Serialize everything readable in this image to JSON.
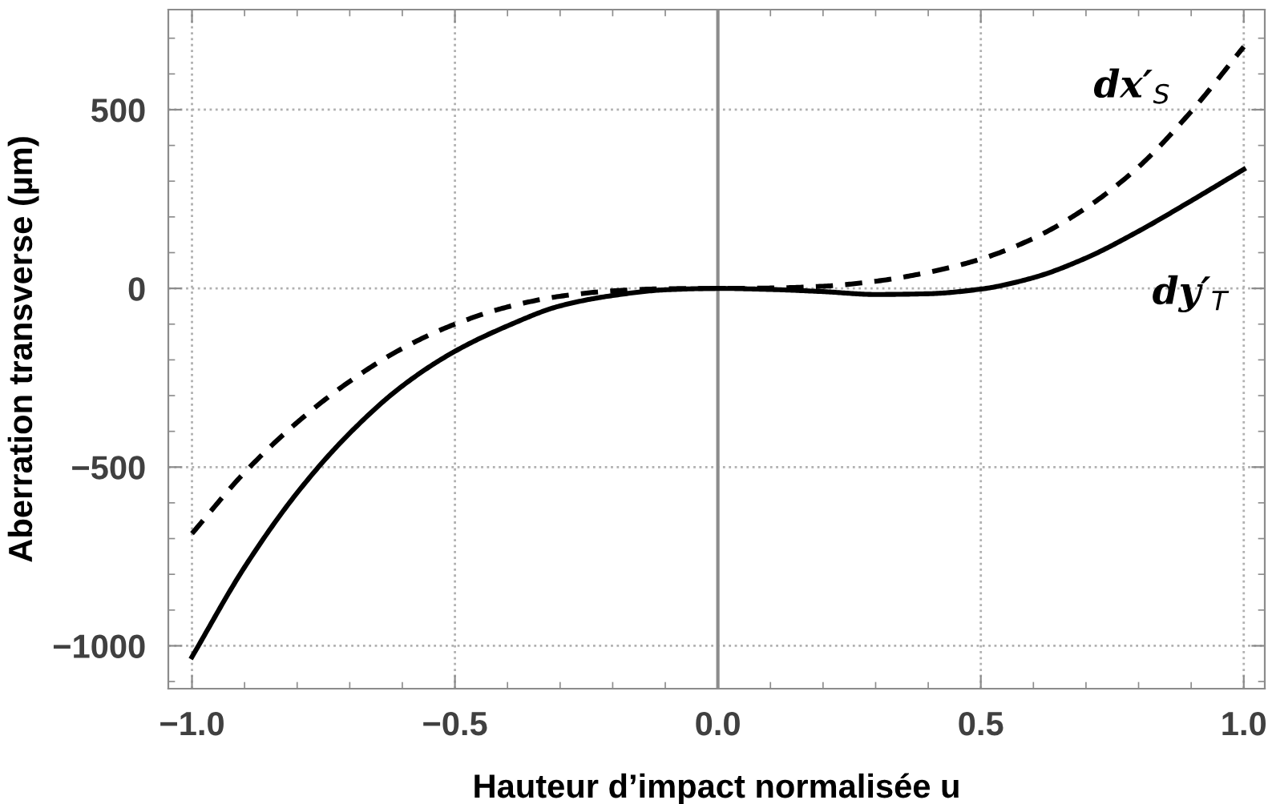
{
  "chart_data": {
    "type": "line",
    "xlabel": "Hauteur d’impact normalisée u",
    "ylabel": "Aberration transverse (µm)",
    "x": [
      -1.0,
      -0.9,
      -0.8,
      -0.7,
      -0.6,
      -0.5,
      -0.4,
      -0.3,
      -0.2,
      -0.1,
      0.0,
      0.1,
      0.2,
      0.3,
      0.4,
      0.5,
      0.6,
      0.7,
      0.8,
      0.9,
      1.0
    ],
    "series": [
      {
        "color": "#000000",
        "line_style": "dashed",
        "values": [
          -686,
          -515,
          -375,
          -260,
          -168,
          -100,
          -52,
          -22,
          -7,
          -1,
          0,
          1,
          6,
          20,
          45,
          82,
          140,
          225,
          340,
          495,
          676
        ]
      },
      {
        "color": "#000000",
        "line_style": "solid",
        "values": [
          -1031,
          -780,
          -572,
          -405,
          -273,
          -176,
          -105,
          -49,
          -20,
          -4,
          0,
          -3,
          -9,
          -17,
          -15,
          -2,
          30,
          85,
          160,
          245,
          333
        ]
      }
    ],
    "annotations": [
      "dx′$_{S}$",
      "dy′$_{T}$"
    ],
    "ref_lines": [
      {
        "axis": "x",
        "value": 0,
        "color": "#8c8c8c"
      }
    ],
    "xlim": [
      -1.045,
      1.04
    ],
    "xticks": [
      {
        "value": -1.0,
        "label": "−1.0"
      },
      {
        "value": -0.5,
        "label": "−0.5"
      },
      {
        "value": 0,
        "label": "0.0"
      },
      {
        "value": 0.5,
        "label": "0.5"
      },
      {
        "value": 1.0,
        "label": "1.0"
      }
    ],
    "ylim": [
      -1120,
      780
    ],
    "yticks": [
      -1000,
      -500,
      0,
      500
    ],
    "grid": true,
    "marker": "none"
  }
}
